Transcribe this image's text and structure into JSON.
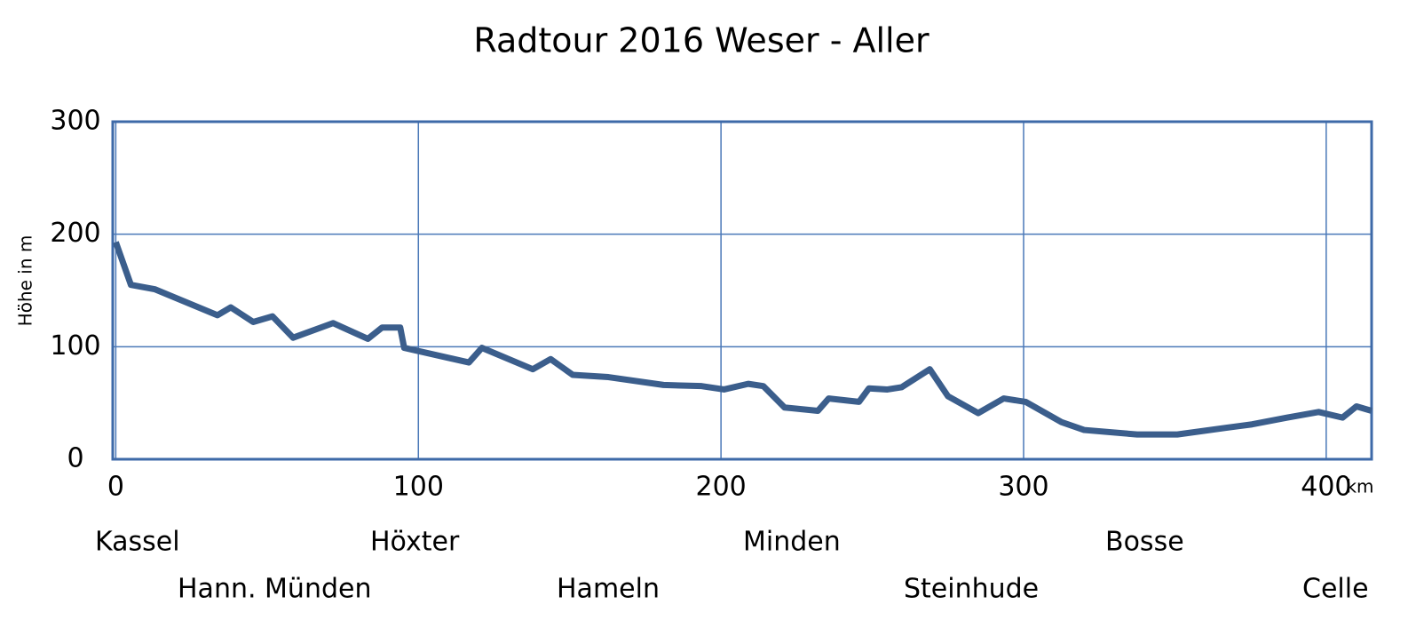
{
  "chart_data": {
    "type": "line",
    "title": "Radtour 2016 Weser - Aller",
    "y_label": "Höhe in m",
    "x_unit": "km",
    "x": [
      0,
      5,
      13,
      33.6,
      38,
      45.4,
      51.8,
      58.6,
      71.8,
      83.3,
      88,
      94,
      95.3,
      116.7,
      121,
      137.8,
      143.7,
      151,
      162.8,
      181,
      193.6,
      201,
      209,
      214,
      221,
      232,
      235.6,
      245.6,
      248.9,
      255,
      259.7,
      269,
      275,
      285,
      293.4,
      300.7,
      312.5,
      320,
      337.5,
      350.8,
      367,
      375.5,
      387,
      397.5,
      405.4,
      410,
      415
    ],
    "series": [
      {
        "name": "Höhe",
        "color": "#3b5e8c",
        "values": [
          193,
          155,
          151,
          128,
          135,
          122,
          127,
          108,
          121,
          107,
          117,
          117,
          99,
          86,
          99,
          80,
          89,
          75,
          73,
          66,
          65,
          62,
          67,
          65,
          46,
          43,
          54,
          51,
          63,
          62,
          64,
          80,
          56,
          41,
          54,
          51,
          33,
          26,
          22,
          22,
          28,
          31,
          37,
          42,
          37,
          47,
          43
        ]
      }
    ],
    "xlim": [
      -1,
      415
    ],
    "xticks": [
      0,
      100,
      200,
      300,
      400
    ],
    "ylim": [
      0,
      300
    ],
    "yticks": [
      0,
      100,
      200,
      300
    ],
    "grid": true,
    "places": [
      "Kassel",
      "Hann. Münden",
      "Höxter",
      "Hameln",
      "Minden",
      "Steinhude",
      "Bosse",
      "Celle"
    ]
  }
}
